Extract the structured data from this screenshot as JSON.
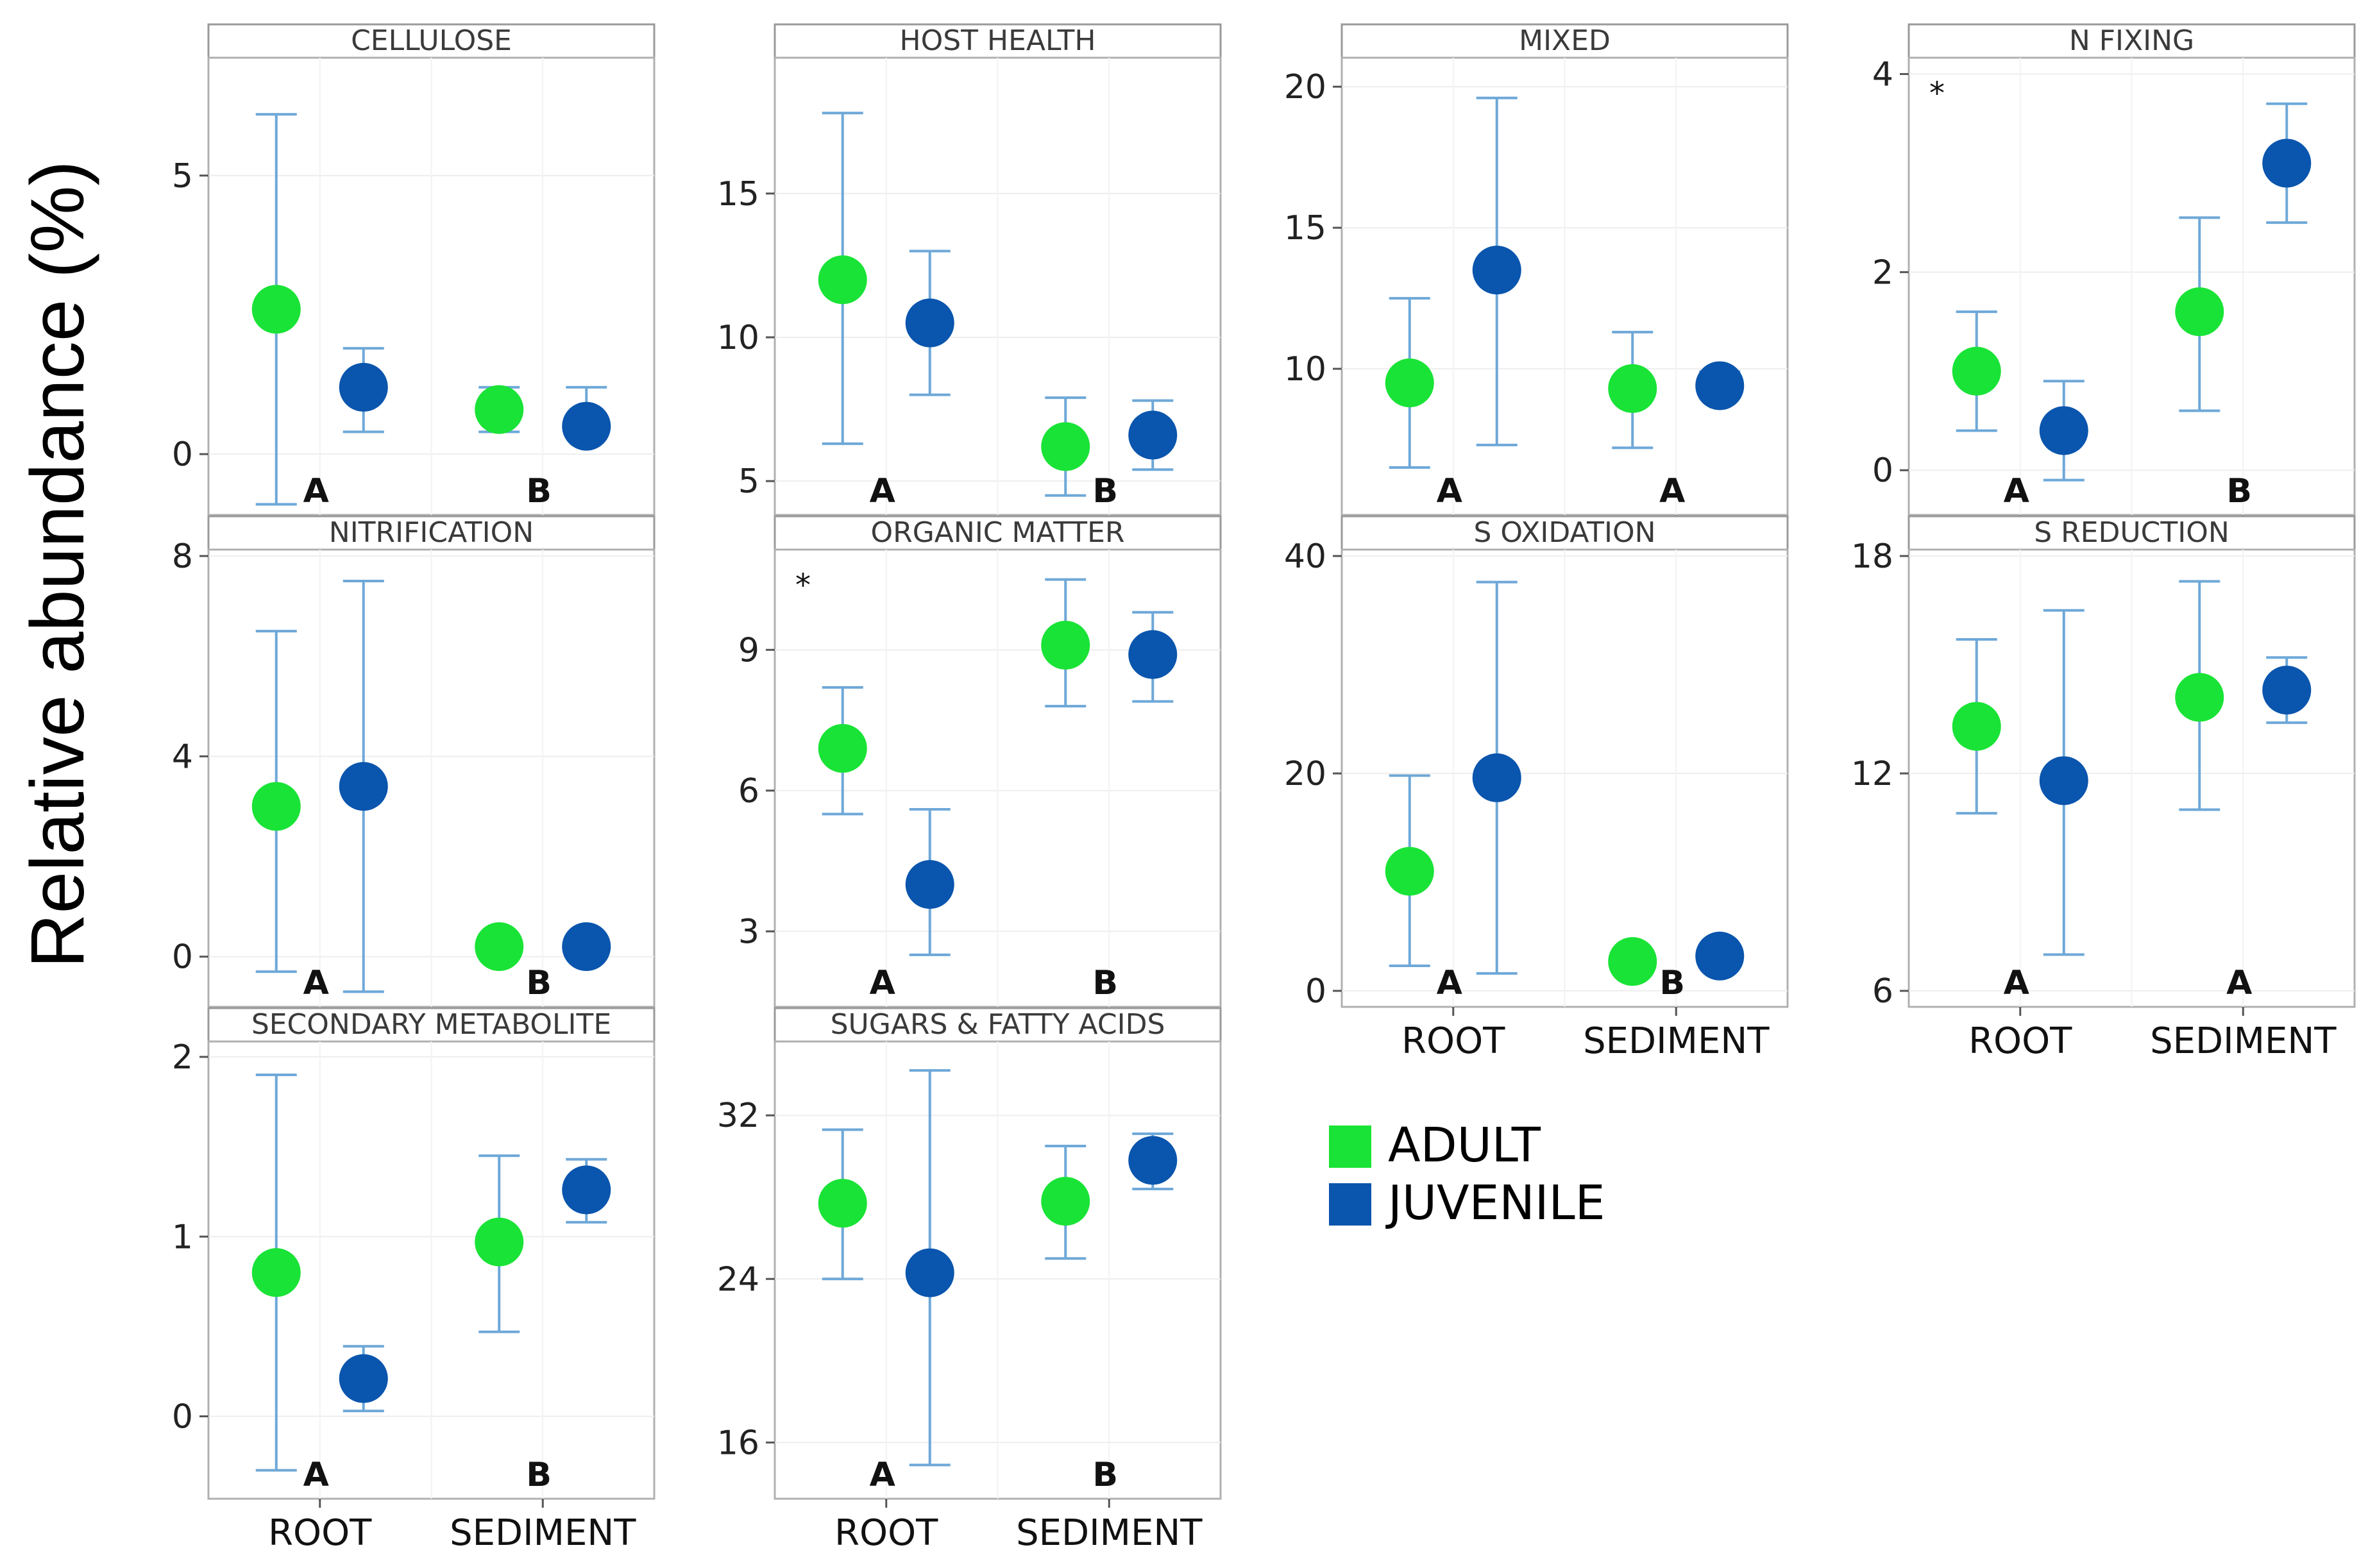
{
  "figure": {
    "ylabel": "Relative abundance (%)",
    "legend": [
      {
        "label": "ADULT",
        "color": "#19e336"
      },
      {
        "label": "JUVENILE",
        "color": "#0a55ad"
      }
    ],
    "series_colors": {
      "adult": "#19e336",
      "juvenile": "#0a55ad",
      "errorbar": "#6ea8d8"
    }
  },
  "chart_data": [
    {
      "type": "scatter",
      "title": "CELLULOSE",
      "categories": [
        "ROOT",
        "SEDIMENT"
      ],
      "yticks": [
        "0",
        "5"
      ],
      "ylim": [
        -1,
        7
      ],
      "series": [
        {
          "name": "ADULT",
          "values": [
            2.6,
            0.8
          ],
          "lower": [
            -0.9,
            0.4
          ],
          "upper": [
            6.1,
            1.2
          ]
        },
        {
          "name": "JUVENILE",
          "values": [
            1.2,
            0.5
          ],
          "lower": [
            0.4,
            0.4
          ],
          "upper": [
            1.9,
            1.2
          ]
        }
      ],
      "letters": [
        "A",
        "B"
      ],
      "star": ""
    },
    {
      "type": "scatter",
      "title": "HOST HEALTH",
      "categories": [
        "ROOT",
        "SEDIMENT"
      ],
      "yticks": [
        "5",
        "10",
        "15"
      ],
      "ylim": [
        4.0,
        19.5
      ],
      "series": [
        {
          "name": "ADULT",
          "values": [
            12.0,
            6.2
          ],
          "lower": [
            6.3,
            4.5
          ],
          "upper": [
            17.8,
            7.9
          ]
        },
        {
          "name": "JUVENILE",
          "values": [
            10.5,
            6.6
          ],
          "lower": [
            8.0,
            5.4
          ],
          "upper": [
            13.0,
            7.8
          ]
        }
      ],
      "letters": [
        "A",
        "B"
      ],
      "star": ""
    },
    {
      "type": "scatter",
      "title": "MIXED",
      "categories": [
        "ROOT",
        "SEDIMENT"
      ],
      "yticks": [
        "10",
        "15",
        "20"
      ],
      "ylim": [
        5.0,
        20.8
      ],
      "series": [
        {
          "name": "ADULT",
          "values": [
            9.5,
            9.3
          ],
          "lower": [
            6.5,
            7.2
          ],
          "upper": [
            12.5,
            11.3
          ]
        },
        {
          "name": "JUVENILE",
          "values": [
            13.5,
            9.4
          ],
          "lower": [
            7.3,
            9.0
          ],
          "upper": [
            19.6,
            9.9
          ]
        }
      ],
      "letters": [
        "A",
        "A"
      ],
      "star": ""
    },
    {
      "type": "scatter",
      "title": "N FIXING",
      "categories": [
        "ROOT",
        "SEDIMENT"
      ],
      "yticks": [
        "0",
        "2",
        "4"
      ],
      "ylim": [
        -0.4,
        4.1
      ],
      "series": [
        {
          "name": "ADULT",
          "values": [
            1.0,
            1.6
          ],
          "lower": [
            0.4,
            0.6
          ],
          "upper": [
            1.6,
            2.55
          ]
        },
        {
          "name": "JUVENILE",
          "values": [
            0.4,
            3.1
          ],
          "lower": [
            -0.1,
            2.5
          ],
          "upper": [
            0.9,
            3.7
          ]
        }
      ],
      "letters": [
        "A",
        "B"
      ],
      "star": "*"
    },
    {
      "type": "scatter",
      "title": "NITRIFICATION",
      "categories": [
        "ROOT",
        "SEDIMENT"
      ],
      "yticks": [
        "0",
        "4",
        "8"
      ],
      "ylim": [
        -0.9,
        8.0
      ],
      "series": [
        {
          "name": "ADULT",
          "values": [
            3.0,
            0.2
          ],
          "lower": [
            -0.3,
            0.0
          ],
          "upper": [
            6.5,
            0.4
          ]
        },
        {
          "name": "JUVENILE",
          "values": [
            3.4,
            0.2
          ],
          "lower": [
            -0.7,
            0.0
          ],
          "upper": [
            7.5,
            0.4
          ]
        }
      ],
      "letters": [
        "A",
        "B"
      ],
      "star": ""
    },
    {
      "type": "scatter",
      "title": "ORGANIC MATTER",
      "categories": [
        "ROOT",
        "SEDIMENT"
      ],
      "yticks": [
        "3",
        "6",
        "9"
      ],
      "ylim": [
        1.5,
        11.0
      ],
      "series": [
        {
          "name": "ADULT",
          "values": [
            6.9,
            9.1
          ],
          "lower": [
            5.5,
            7.8
          ],
          "upper": [
            8.2,
            10.5
          ]
        },
        {
          "name": "JUVENILE",
          "values": [
            4.0,
            8.9
          ],
          "lower": [
            2.5,
            7.9
          ],
          "upper": [
            5.6,
            9.8
          ]
        }
      ],
      "letters": [
        "A",
        "B"
      ],
      "star": "*"
    },
    {
      "type": "scatter",
      "title": "S OXIDATION",
      "categories": [
        "ROOT",
        "SEDIMENT"
      ],
      "yticks": [
        "0",
        "20",
        "40"
      ],
      "ylim": [
        -1.0,
        40.0
      ],
      "series": [
        {
          "name": "ADULT",
          "values": [
            11.0,
            2.7
          ],
          "lower": [
            2.3,
            2.0
          ],
          "upper": [
            19.8,
            3.4
          ]
        },
        {
          "name": "JUVENILE",
          "values": [
            19.6,
            3.2
          ],
          "lower": [
            1.6,
            2.4
          ],
          "upper": [
            37.6,
            4.0
          ]
        }
      ],
      "letters": [
        "A",
        "B"
      ],
      "star": ""
    },
    {
      "type": "scatter",
      "title": "S REDUCTION",
      "categories": [
        "ROOT",
        "SEDIMENT"
      ],
      "yticks": [
        "6",
        "12",
        "18"
      ],
      "ylim": [
        5.7,
        18.0
      ],
      "series": [
        {
          "name": "ADULT",
          "values": [
            13.3,
            14.1
          ],
          "lower": [
            10.9,
            11.0
          ],
          "upper": [
            15.7,
            17.3
          ]
        },
        {
          "name": "JUVENILE",
          "values": [
            11.8,
            14.3
          ],
          "lower": [
            7.0,
            13.4
          ],
          "upper": [
            16.5,
            15.2
          ]
        }
      ],
      "letters": [
        "A",
        "A"
      ],
      "star": ""
    },
    {
      "type": "scatter",
      "title": "SECONDARY METABOLITE",
      "categories": [
        "ROOT",
        "SEDIMENT"
      ],
      "yticks": [
        "0",
        "1",
        "2"
      ],
      "ylim": [
        -0.43,
        2.05
      ],
      "series": [
        {
          "name": "ADULT",
          "values": [
            0.8,
            0.97
          ],
          "lower": [
            -0.3,
            0.47
          ],
          "upper": [
            1.9,
            1.45
          ]
        },
        {
          "name": "JUVENILE",
          "values": [
            0.21,
            1.26
          ],
          "lower": [
            0.03,
            1.08
          ],
          "upper": [
            0.39,
            1.43
          ]
        }
      ],
      "letters": [
        "A",
        "B"
      ],
      "star": ""
    },
    {
      "type": "scatter",
      "title": "SUGARS & FATTY ACIDS",
      "categories": [
        "ROOT",
        "SEDIMENT"
      ],
      "yticks": [
        "16",
        "24",
        "32"
      ],
      "ylim": [
        13.5,
        35.3
      ],
      "series": [
        {
          "name": "ADULT",
          "values": [
            27.7,
            27.8
          ],
          "lower": [
            24.0,
            25.0
          ],
          "upper": [
            31.3,
            30.5
          ]
        },
        {
          "name": "JUVENILE",
          "values": [
            24.3,
            29.8
          ],
          "lower": [
            14.9,
            28.4
          ],
          "upper": [
            34.2,
            31.1
          ]
        }
      ],
      "letters": [
        "A",
        "B"
      ],
      "star": ""
    }
  ]
}
